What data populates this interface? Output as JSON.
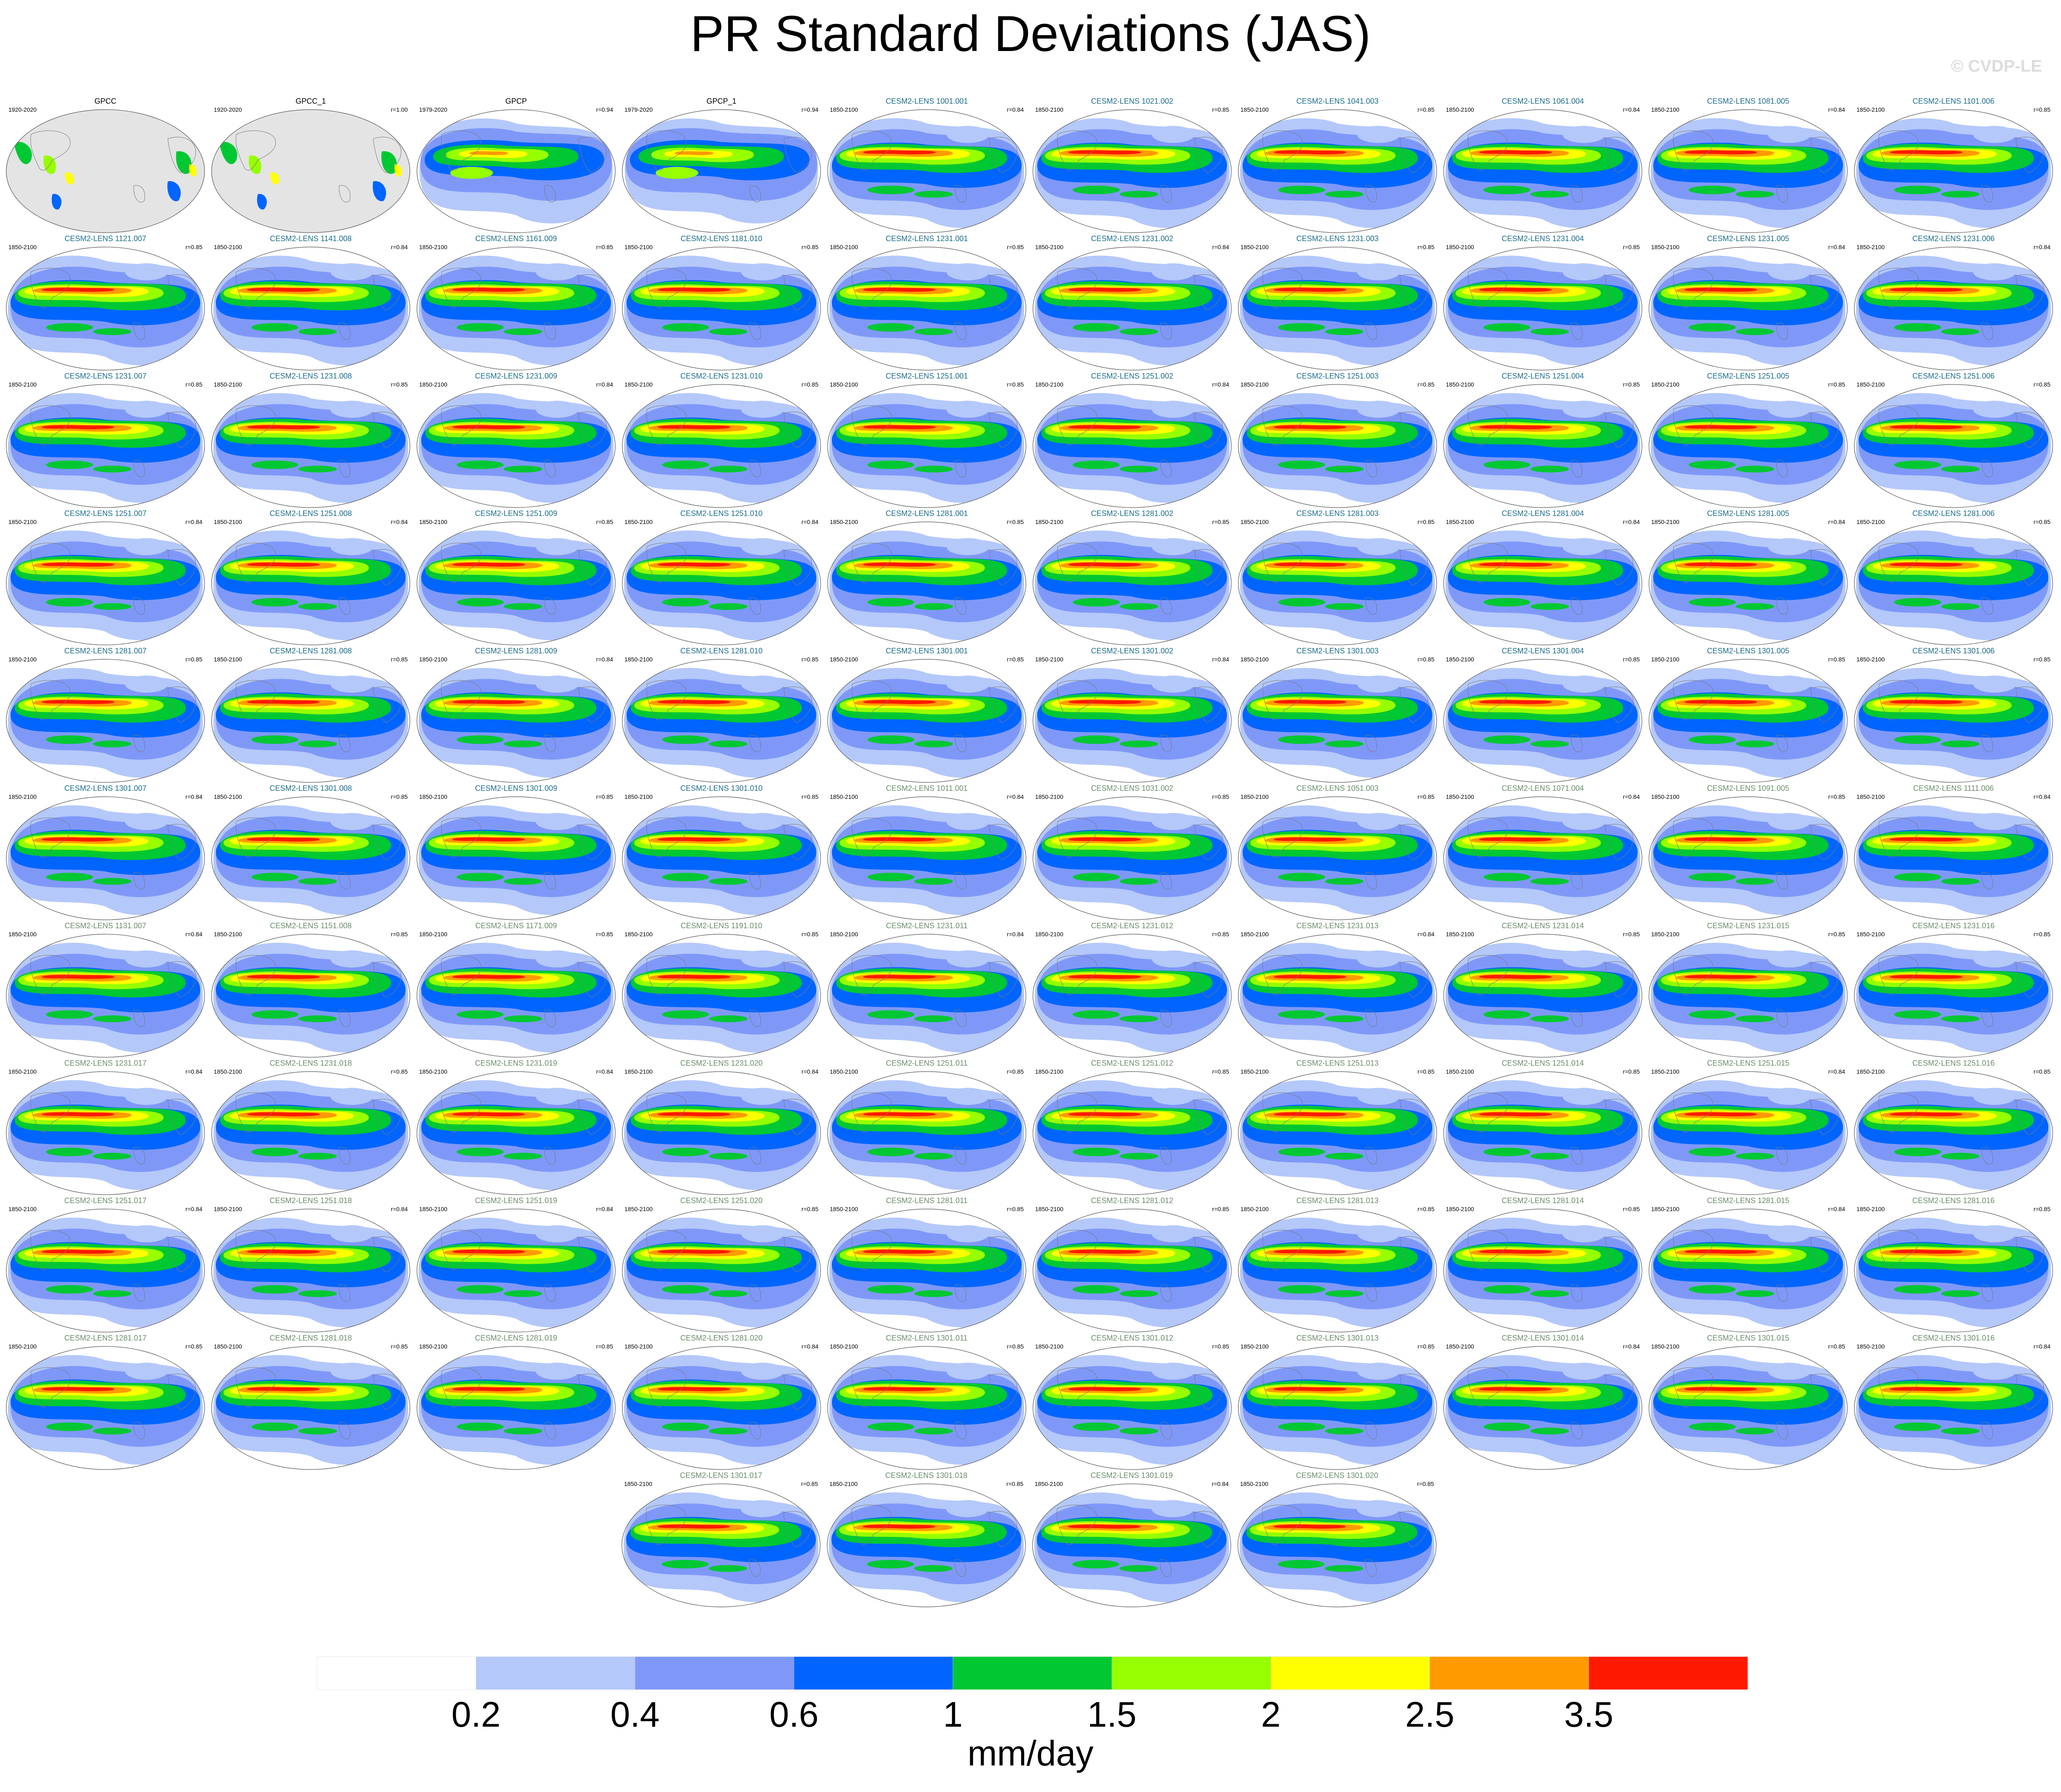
{
  "title": "PR Standard Deviations (JAS)",
  "copyright": "© CVDP-LE",
  "chart_data": {
    "type": "map-panels",
    "units": "mm/day",
    "colorbar": {
      "ticks": [
        "0.2",
        "0.4",
        "0.6",
        "1",
        "1.5",
        "2",
        "2.5",
        "3.5"
      ],
      "colors": [
        "#ffffff",
        "#b4c8fa",
        "#7f98f8",
        "#0065fe",
        "#00c832",
        "#96ff00",
        "#ffff00",
        "#ff9b00",
        "#ff1900"
      ]
    },
    "title_colors": {
      "obs": "#000000",
      "lens_a": "#1f6e8c",
      "lens_b": "#6b8e6b"
    },
    "panels": [
      {
        "title": "GPCC",
        "period": "1920-2020",
        "r": "",
        "group": "obs",
        "dataset": "gpcc"
      },
      {
        "title": "GPCC_1",
        "period": "1920-2020",
        "r": "r=1.00",
        "group": "obs",
        "dataset": "gpcc"
      },
      {
        "title": "GPCP",
        "period": "1979-2020",
        "r": "r=0.94",
        "group": "obs",
        "dataset": "gpcp"
      },
      {
        "title": "GPCP_1",
        "period": "1979-2020",
        "r": "r=0.94",
        "group": "obs",
        "dataset": "gpcp"
      },
      {
        "title": "CESM2-LENS 1001.001",
        "period": "1850-2100",
        "r": "r=0.84",
        "group": "lens_a"
      },
      {
        "title": "CESM2-LENS 1021.002",
        "period": "1850-2100",
        "r": "r=0.85",
        "group": "lens_a"
      },
      {
        "title": "CESM2-LENS 1041.003",
        "period": "1850-2100",
        "r": "r=0.85",
        "group": "lens_a"
      },
      {
        "title": "CESM2-LENS 1061.004",
        "period": "1850-2100",
        "r": "r=0.84",
        "group": "lens_a"
      },
      {
        "title": "CESM2-LENS 1081.005",
        "period": "1850-2100",
        "r": "r=0.84",
        "group": "lens_a"
      },
      {
        "title": "CESM2-LENS 1101.006",
        "period": "1850-2100",
        "r": "r=0.85",
        "group": "lens_a"
      },
      {
        "title": "CESM2-LENS 1121.007",
        "period": "1850-2100",
        "r": "r=0.85",
        "group": "lens_a"
      },
      {
        "title": "CESM2-LENS 1141.008",
        "period": "1850-2100",
        "r": "r=0.84",
        "group": "lens_a"
      },
      {
        "title": "CESM2-LENS 1161.009",
        "period": "1850-2100",
        "r": "r=0.85",
        "group": "lens_a"
      },
      {
        "title": "CESM2-LENS 1181.010",
        "period": "1850-2100",
        "r": "r=0.85",
        "group": "lens_a"
      },
      {
        "title": "CESM2-LENS 1231.001",
        "period": "1850-2100",
        "r": "r=0.85",
        "group": "lens_a"
      },
      {
        "title": "CESM2-LENS 1231.002",
        "period": "1850-2100",
        "r": "r=0.84",
        "group": "lens_a"
      },
      {
        "title": "CESM2-LENS 1231.003",
        "period": "1850-2100",
        "r": "r=0.85",
        "group": "lens_a"
      },
      {
        "title": "CESM2-LENS 1231.004",
        "period": "1850-2100",
        "r": "r=0.85",
        "group": "lens_a"
      },
      {
        "title": "CESM2-LENS 1231.005",
        "period": "1850-2100",
        "r": "r=0.84",
        "group": "lens_a"
      },
      {
        "title": "CESM2-LENS 1231.006",
        "period": "1850-2100",
        "r": "r=0.84",
        "group": "lens_a"
      },
      {
        "title": "CESM2-LENS 1231.007",
        "period": "1850-2100",
        "r": "r=0.85",
        "group": "lens_a"
      },
      {
        "title": "CESM2-LENS 1231.008",
        "period": "1850-2100",
        "r": "r=0.85",
        "group": "lens_a"
      },
      {
        "title": "CESM2-LENS 1231.009",
        "period": "1850-2100",
        "r": "r=0.84",
        "group": "lens_a"
      },
      {
        "title": "CESM2-LENS 1231.010",
        "period": "1850-2100",
        "r": "r=0.85",
        "group": "lens_a"
      },
      {
        "title": "CESM2-LENS 1251.001",
        "period": "1850-2100",
        "r": "r=0.85",
        "group": "lens_a"
      },
      {
        "title": "CESM2-LENS 1251.002",
        "period": "1850-2100",
        "r": "r=0.84",
        "group": "lens_a"
      },
      {
        "title": "CESM2-LENS 1251.003",
        "period": "1850-2100",
        "r": "r=0.85",
        "group": "lens_a"
      },
      {
        "title": "CESM2-LENS 1251.004",
        "period": "1850-2100",
        "r": "r=0.85",
        "group": "lens_a"
      },
      {
        "title": "CESM2-LENS 1251.005",
        "period": "1850-2100",
        "r": "r=0.85",
        "group": "lens_a"
      },
      {
        "title": "CESM2-LENS 1251.006",
        "period": "1850-2100",
        "r": "r=0.85",
        "group": "lens_a"
      },
      {
        "title": "CESM2-LENS 1251.007",
        "period": "1850-2100",
        "r": "r=0.84",
        "group": "lens_a"
      },
      {
        "title": "CESM2-LENS 1251.008",
        "period": "1850-2100",
        "r": "r=0.84",
        "group": "lens_a"
      },
      {
        "title": "CESM2-LENS 1251.009",
        "period": "1850-2100",
        "r": "r=0.85",
        "group": "lens_a"
      },
      {
        "title": "CESM2-LENS 1251.010",
        "period": "1850-2100",
        "r": "r=0.84",
        "group": "lens_a"
      },
      {
        "title": "CESM2-LENS 1281.001",
        "period": "1850-2100",
        "r": "r=0.85",
        "group": "lens_a"
      },
      {
        "title": "CESM2-LENS 1281.002",
        "period": "1850-2100",
        "r": "r=0.85",
        "group": "lens_a"
      },
      {
        "title": "CESM2-LENS 1281.003",
        "period": "1850-2100",
        "r": "r=0.85",
        "group": "lens_a"
      },
      {
        "title": "CESM2-LENS 1281.004",
        "period": "1850-2100",
        "r": "r=0.84",
        "group": "lens_a"
      },
      {
        "title": "CESM2-LENS 1281.005",
        "period": "1850-2100",
        "r": "r=0.84",
        "group": "lens_a"
      },
      {
        "title": "CESM2-LENS 1281.006",
        "period": "1850-2100",
        "r": "r=0.85",
        "group": "lens_a"
      },
      {
        "title": "CESM2-LENS 1281.007",
        "period": "1850-2100",
        "r": "r=0.85",
        "group": "lens_a"
      },
      {
        "title": "CESM2-LENS 1281.008",
        "period": "1850-2100",
        "r": "r=0.85",
        "group": "lens_a"
      },
      {
        "title": "CESM2-LENS 1281.009",
        "period": "1850-2100",
        "r": "r=0.84",
        "group": "lens_a"
      },
      {
        "title": "CESM2-LENS 1281.010",
        "period": "1850-2100",
        "r": "r=0.85",
        "group": "lens_a"
      },
      {
        "title": "CESM2-LENS 1301.001",
        "period": "1850-2100",
        "r": "r=0.85",
        "group": "lens_a"
      },
      {
        "title": "CESM2-LENS 1301.002",
        "period": "1850-2100",
        "r": "r=0.84",
        "group": "lens_a"
      },
      {
        "title": "CESM2-LENS 1301.003",
        "period": "1850-2100",
        "r": "r=0.85",
        "group": "lens_a"
      },
      {
        "title": "CESM2-LENS 1301.004",
        "period": "1850-2100",
        "r": "r=0.85",
        "group": "lens_a"
      },
      {
        "title": "CESM2-LENS 1301.005",
        "period": "1850-2100",
        "r": "r=0.85",
        "group": "lens_a"
      },
      {
        "title": "CESM2-LENS 1301.006",
        "period": "1850-2100",
        "r": "r=0.85",
        "group": "lens_a"
      },
      {
        "title": "CESM2-LENS 1301.007",
        "period": "1850-2100",
        "r": "r=0.84",
        "group": "lens_a"
      },
      {
        "title": "CESM2-LENS 1301.008",
        "period": "1850-2100",
        "r": "r=0.85",
        "group": "lens_a"
      },
      {
        "title": "CESM2-LENS 1301.009",
        "period": "1850-2100",
        "r": "r=0.85",
        "group": "lens_a"
      },
      {
        "title": "CESM2-LENS 1301.010",
        "period": "1850-2100",
        "r": "r=0.85",
        "group": "lens_a"
      },
      {
        "title": "CESM2-LENS 1011.001",
        "period": "1850-2100",
        "r": "r=0.84",
        "group": "lens_b"
      },
      {
        "title": "CESM2-LENS 1031.002",
        "period": "1850-2100",
        "r": "r=0.85",
        "group": "lens_b"
      },
      {
        "title": "CESM2-LENS 1051.003",
        "period": "1850-2100",
        "r": "r=0.85",
        "group": "lens_b"
      },
      {
        "title": "CESM2-LENS 1071.004",
        "period": "1850-2100",
        "r": "r=0.84",
        "group": "lens_b"
      },
      {
        "title": "CESM2-LENS 1091.005",
        "period": "1850-2100",
        "r": "r=0.85",
        "group": "lens_b"
      },
      {
        "title": "CESM2-LENS 1111.006",
        "period": "1850-2100",
        "r": "r=0.84",
        "group": "lens_b"
      },
      {
        "title": "CESM2-LENS 1131.007",
        "period": "1850-2100",
        "r": "r=0.84",
        "group": "lens_b"
      },
      {
        "title": "CESM2-LENS 1151.008",
        "period": "1850-2100",
        "r": "r=0.85",
        "group": "lens_b"
      },
      {
        "title": "CESM2-LENS 1171.009",
        "period": "1850-2100",
        "r": "r=0.85",
        "group": "lens_b"
      },
      {
        "title": "CESM2-LENS 1191.010",
        "period": "1850-2100",
        "r": "r=0.85",
        "group": "lens_b"
      },
      {
        "title": "CESM2-LENS 1231.011",
        "period": "1850-2100",
        "r": "r=0.84",
        "group": "lens_b"
      },
      {
        "title": "CESM2-LENS 1231.012",
        "period": "1850-2100",
        "r": "r=0.85",
        "group": "lens_b"
      },
      {
        "title": "CESM2-LENS 1231.013",
        "period": "1850-2100",
        "r": "r=0.84",
        "group": "lens_b"
      },
      {
        "title": "CESM2-LENS 1231.014",
        "period": "1850-2100",
        "r": "r=0.85",
        "group": "lens_b"
      },
      {
        "title": "CESM2-LENS 1231.015",
        "period": "1850-2100",
        "r": "r=0.85",
        "group": "lens_b"
      },
      {
        "title": "CESM2-LENS 1231.016",
        "period": "1850-2100",
        "r": "r=0.85",
        "group": "lens_b"
      },
      {
        "title": "CESM2-LENS 1231.017",
        "period": "1850-2100",
        "r": "r=0.84",
        "group": "lens_b"
      },
      {
        "title": "CESM2-LENS 1231.018",
        "period": "1850-2100",
        "r": "r=0.85",
        "group": "lens_b"
      },
      {
        "title": "CESM2-LENS 1231.019",
        "period": "1850-2100",
        "r": "r=0.84",
        "group": "lens_b"
      },
      {
        "title": "CESM2-LENS 1231.020",
        "period": "1850-2100",
        "r": "r=0.84",
        "group": "lens_b"
      },
      {
        "title": "CESM2-LENS 1251.011",
        "period": "1850-2100",
        "r": "r=0.85",
        "group": "lens_b"
      },
      {
        "title": "CESM2-LENS 1251.012",
        "period": "1850-2100",
        "r": "r=0.85",
        "group": "lens_b"
      },
      {
        "title": "CESM2-LENS 1251.013",
        "period": "1850-2100",
        "r": "r=0.85",
        "group": "lens_b"
      },
      {
        "title": "CESM2-LENS 1251.014",
        "period": "1850-2100",
        "r": "r=0.85",
        "group": "lens_b"
      },
      {
        "title": "CESM2-LENS 1251.015",
        "period": "1850-2100",
        "r": "r=0.84",
        "group": "lens_b"
      },
      {
        "title": "CESM2-LENS 1251.016",
        "period": "1850-2100",
        "r": "r=0.85",
        "group": "lens_b"
      },
      {
        "title": "CESM2-LENS 1251.017",
        "period": "1850-2100",
        "r": "r=0.84",
        "group": "lens_b"
      },
      {
        "title": "CESM2-LENS 1251.018",
        "period": "1850-2100",
        "r": "r=0.84",
        "group": "lens_b"
      },
      {
        "title": "CESM2-LENS 1251.019",
        "period": "1850-2100",
        "r": "r=0.84",
        "group": "lens_b"
      },
      {
        "title": "CESM2-LENS 1251.020",
        "period": "1850-2100",
        "r": "r=0.85",
        "group": "lens_b"
      },
      {
        "title": "CESM2-LENS 1281.011",
        "period": "1850-2100",
        "r": "r=0.85",
        "group": "lens_b"
      },
      {
        "title": "CESM2-LENS 1281.012",
        "period": "1850-2100",
        "r": "r=0.85",
        "group": "lens_b"
      },
      {
        "title": "CESM2-LENS 1281.013",
        "period": "1850-2100",
        "r": "r=0.85",
        "group": "lens_b"
      },
      {
        "title": "CESM2-LENS 1281.014",
        "period": "1850-2100",
        "r": "r=0.85",
        "group": "lens_b"
      },
      {
        "title": "CESM2-LENS 1281.015",
        "period": "1850-2100",
        "r": "r=0.84",
        "group": "lens_b"
      },
      {
        "title": "CESM2-LENS 1281.016",
        "period": "1850-2100",
        "r": "r=0.85",
        "group": "lens_b"
      },
      {
        "title": "CESM2-LENS 1281.017",
        "period": "1850-2100",
        "r": "r=0.85",
        "group": "lens_b"
      },
      {
        "title": "CESM2-LENS 1281.018",
        "period": "1850-2100",
        "r": "r=0.85",
        "group": "lens_b"
      },
      {
        "title": "CESM2-LENS 1281.019",
        "period": "1850-2100",
        "r": "r=0.85",
        "group": "lens_b"
      },
      {
        "title": "CESM2-LENS 1281.020",
        "period": "1850-2100",
        "r": "r=0.84",
        "group": "lens_b"
      },
      {
        "title": "CESM2-LENS 1301.011",
        "period": "1850-2100",
        "r": "r=0.85",
        "group": "lens_b"
      },
      {
        "title": "CESM2-LENS 1301.012",
        "period": "1850-2100",
        "r": "r=0.85",
        "group": "lens_b"
      },
      {
        "title": "CESM2-LENS 1301.013",
        "period": "1850-2100",
        "r": "r=0.85",
        "group": "lens_b"
      },
      {
        "title": "CESM2-LENS 1301.014",
        "period": "1850-2100",
        "r": "r=0.84",
        "group": "lens_b"
      },
      {
        "title": "CESM2-LENS 1301.015",
        "period": "1850-2100",
        "r": "r=0.85",
        "group": "lens_b"
      },
      {
        "title": "CESM2-LENS 1301.016",
        "period": "1850-2100",
        "r": "r=0.84",
        "group": "lens_b"
      },
      {
        "title": "CESM2-LENS 1301.017",
        "period": "1850-2100",
        "r": "r=0.85",
        "group": "lens_b"
      },
      {
        "title": "CESM2-LENS 1301.018",
        "period": "1850-2100",
        "r": "r=0.85",
        "group": "lens_b"
      },
      {
        "title": "CESM2-LENS 1301.019",
        "period": "1850-2100",
        "r": "r=0.84",
        "group": "lens_b"
      },
      {
        "title": "CESM2-LENS 1301.020",
        "period": "1850-2100",
        "r": "r=0.85",
        "group": "lens_b"
      }
    ]
  }
}
